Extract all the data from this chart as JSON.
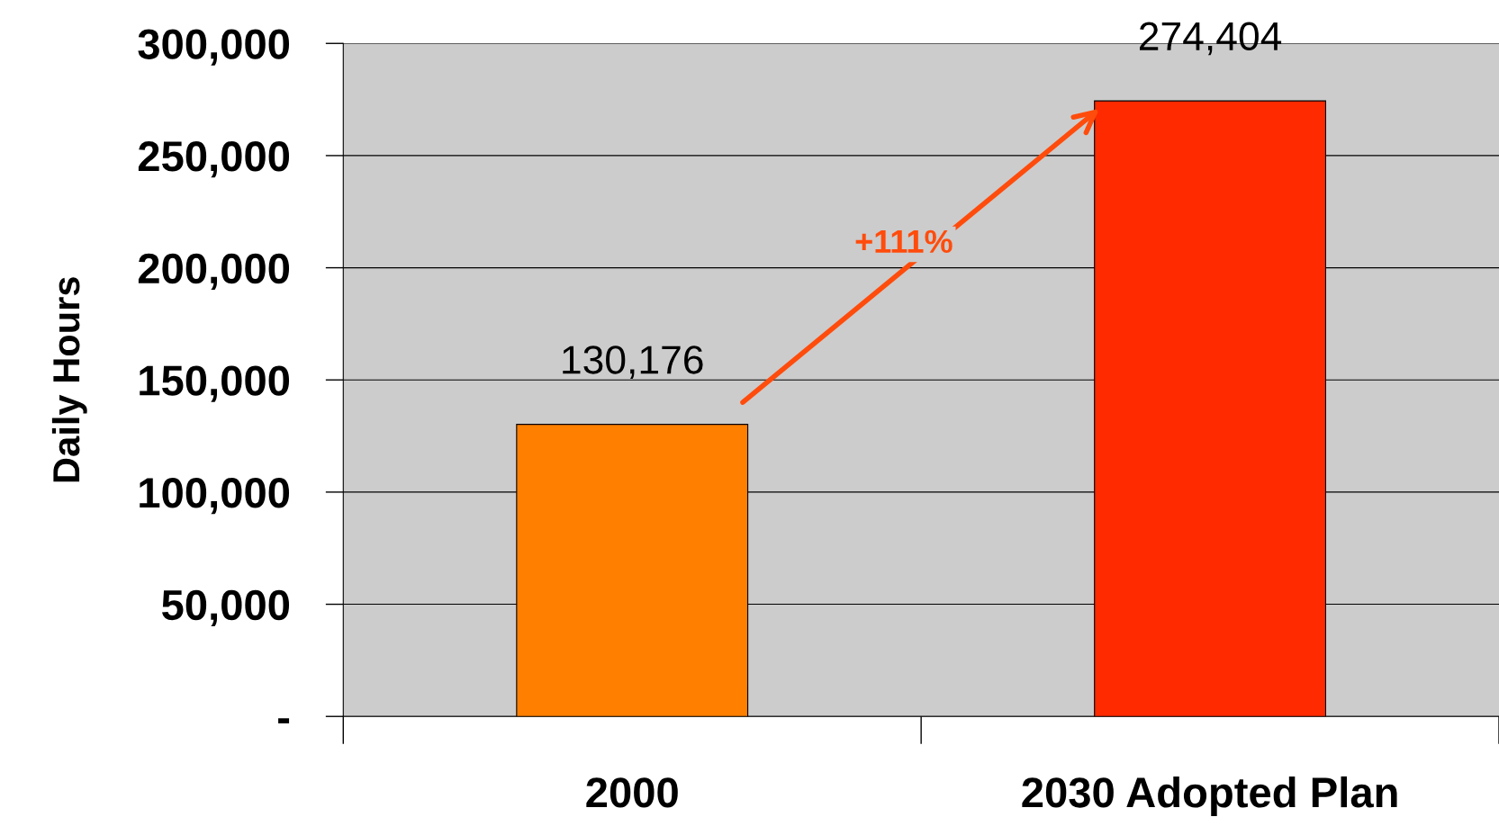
{
  "chart_data": {
    "type": "bar",
    "ylabel": "Daily Hours",
    "categories": [
      "2000",
      "2030 Adopted Plan"
    ],
    "values": [
      130176,
      274404
    ],
    "colors": [
      "#ff7f00",
      "#ff2a00"
    ],
    "ylim": [
      0,
      300000
    ],
    "yticks": [
      {
        "value": 0,
        "label": "-"
      },
      {
        "value": 50000,
        "label": "50,000"
      },
      {
        "value": 100000,
        "label": "100,000"
      },
      {
        "value": 150000,
        "label": "150,000"
      },
      {
        "value": 200000,
        "label": "200,000"
      },
      {
        "value": 250000,
        "label": "250,000"
      },
      {
        "value": 300000,
        "label": "300,000"
      }
    ],
    "grid": "y",
    "value_labels": [
      "130,176",
      "274,404"
    ],
    "annotations": [
      "+111%"
    ]
  }
}
